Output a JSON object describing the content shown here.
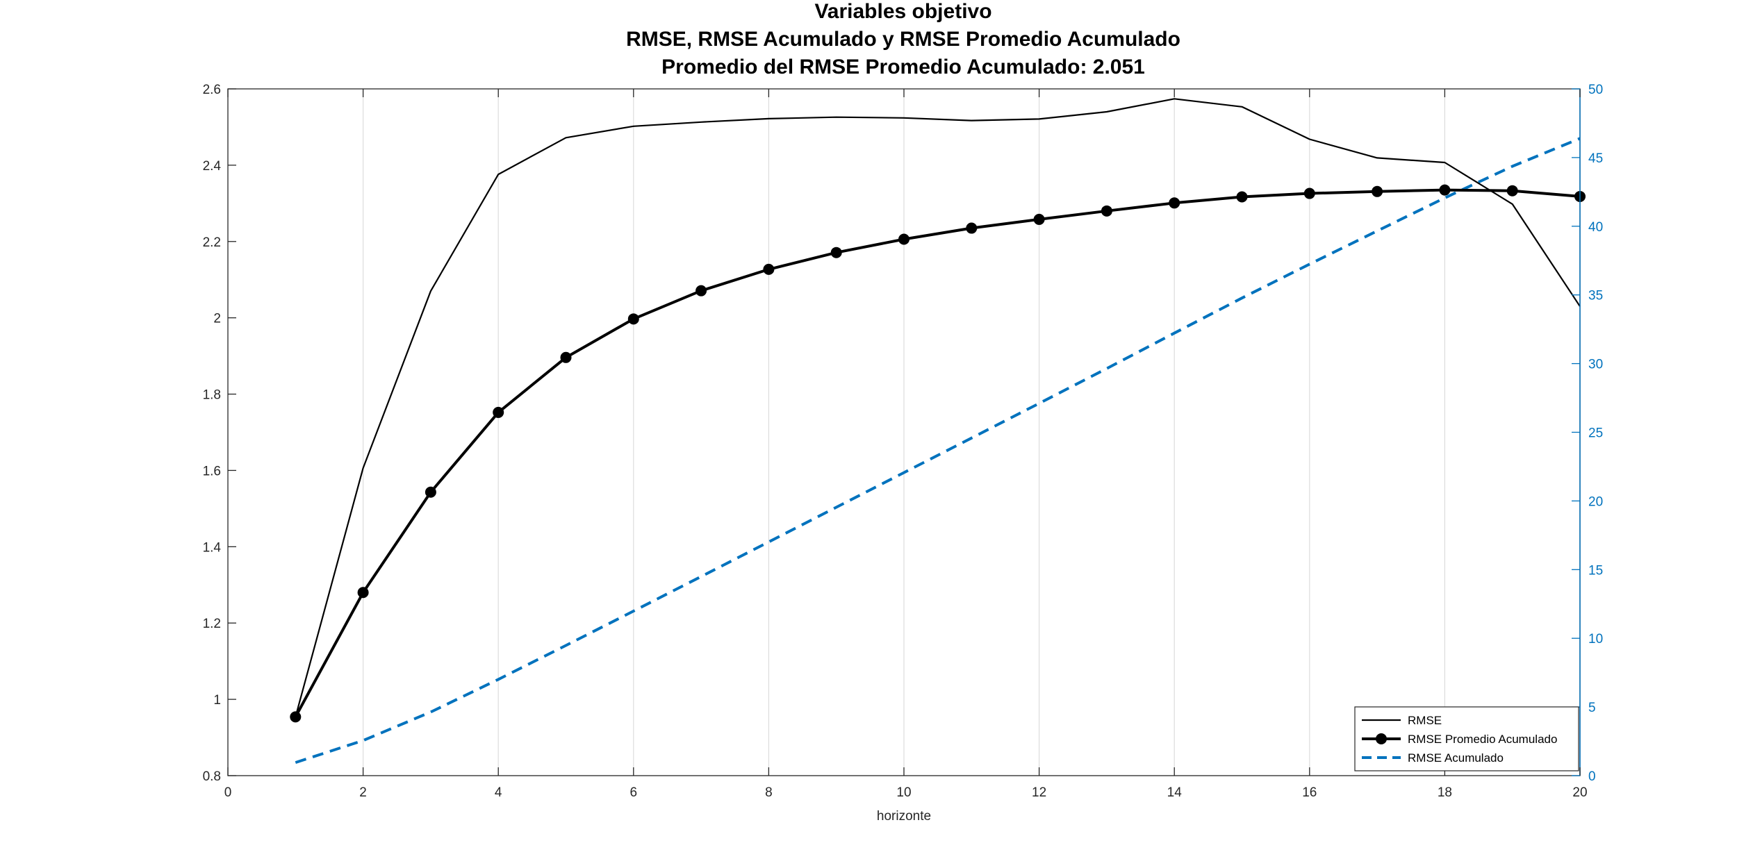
{
  "chart_data": {
    "type": "line",
    "title": [
      "Variables objetivo",
      "RMSE, RMSE Acumulado y RMSE Promedio Acumulado",
      "Promedio del RMSE Promedio Acumulado:  2.051"
    ],
    "xlabel": "horizonte",
    "ylabel_left": "",
    "ylabel_right": "",
    "xlim": [
      0,
      20
    ],
    "ylim_left": [
      0.8,
      2.6
    ],
    "ylim_right": [
      0,
      50
    ],
    "x_ticks": [
      "0",
      "2",
      "4",
      "6",
      "8",
      "10",
      "12",
      "14",
      "16",
      "18",
      "20"
    ],
    "y_left_ticks": [
      "0.8",
      "1",
      "1.2",
      "1.4",
      "1.6",
      "1.8",
      "2",
      "2.2",
      "2.4",
      "2.6"
    ],
    "y_right_ticks": [
      "0",
      "5",
      "10",
      "15",
      "20",
      "25",
      "30",
      "35",
      "40",
      "45",
      "50"
    ],
    "x_grid": true,
    "y_grid": false,
    "legend_position": "bottom-right",
    "x": [
      1,
      2,
      3,
      4,
      5,
      6,
      7,
      8,
      9,
      10,
      11,
      12,
      13,
      14,
      15,
      16,
      17,
      18,
      19,
      20
    ],
    "series": [
      {
        "name": "RMSE",
        "axis": "left",
        "style": "solid",
        "color": "#000000",
        "marker": "none",
        "values": [
          0.954,
          1.606,
          2.07,
          2.376,
          2.472,
          2.502,
          2.513,
          2.522,
          2.526,
          2.524,
          2.517,
          2.521,
          2.54,
          2.574,
          2.553,
          2.468,
          2.419,
          2.407,
          2.298,
          2.03
        ]
      },
      {
        "name": "RMSE Promedio Acumulado",
        "axis": "left",
        "style": "solid-thick",
        "color": "#000000",
        "marker": "circle",
        "values": [
          0.954,
          1.28,
          1.543,
          1.752,
          1.896,
          1.997,
          2.071,
          2.127,
          2.171,
          2.206,
          2.235,
          2.258,
          2.28,
          2.301,
          2.317,
          2.326,
          2.331,
          2.335,
          2.333,
          2.318
        ]
      },
      {
        "name": "RMSE Acumulado",
        "axis": "right",
        "style": "dashed",
        "color": "#0072BD",
        "marker": "none",
        "values": [
          0.954,
          2.56,
          4.63,
          7.006,
          9.478,
          11.98,
          14.493,
          17.015,
          19.541,
          22.065,
          24.582,
          27.103,
          29.643,
          32.217,
          34.77,
          37.238,
          39.657,
          42.064,
          44.362,
          46.392
        ]
      }
    ]
  }
}
